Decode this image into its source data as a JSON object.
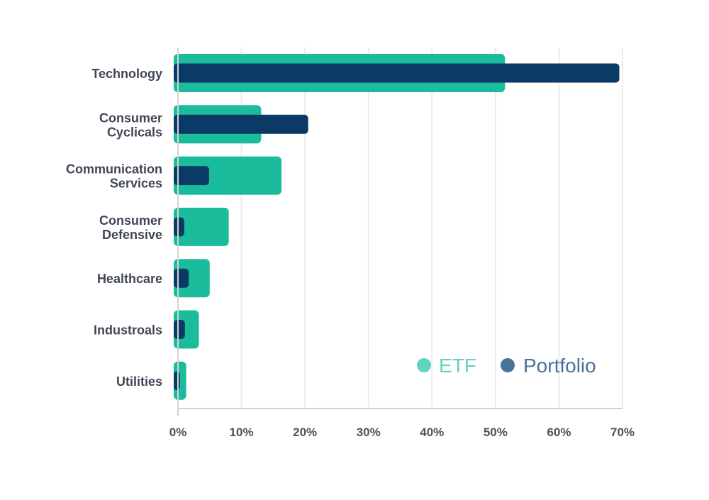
{
  "chart_data": {
    "type": "bar",
    "orientation": "horizontal",
    "categories": [
      [
        "Technology"
      ],
      [
        "Consumer",
        "Cyclicals"
      ],
      [
        "Communication",
        "Services"
      ],
      [
        "Consumer",
        "Defensive"
      ],
      [
        "Healthcare"
      ],
      [
        "Industroals"
      ],
      [
        "Utilities"
      ]
    ],
    "series": [
      {
        "name": "ETF",
        "color": "#1abc9c",
        "legend_color": "#5fd4bf",
        "values": [
          51.5,
          13.1,
          16.3,
          8.0,
          5.0,
          3.3,
          1.3
        ]
      },
      {
        "name": "Portfolio",
        "color": "#0b3a66",
        "legend_color": "#4a7199",
        "values": [
          69.5,
          20.5,
          4.9,
          1.0,
          1.7,
          1.1,
          0.3
        ]
      }
    ],
    "xlim": [
      0,
      70
    ],
    "xticks": [
      0,
      10,
      20,
      30,
      40,
      50,
      60,
      70
    ],
    "xtick_labels": [
      "0%",
      "10%",
      "20%",
      "30%",
      "40%",
      "50%",
      "60%",
      "70%"
    ],
    "grid": true,
    "legend_position": "bottom-right"
  }
}
